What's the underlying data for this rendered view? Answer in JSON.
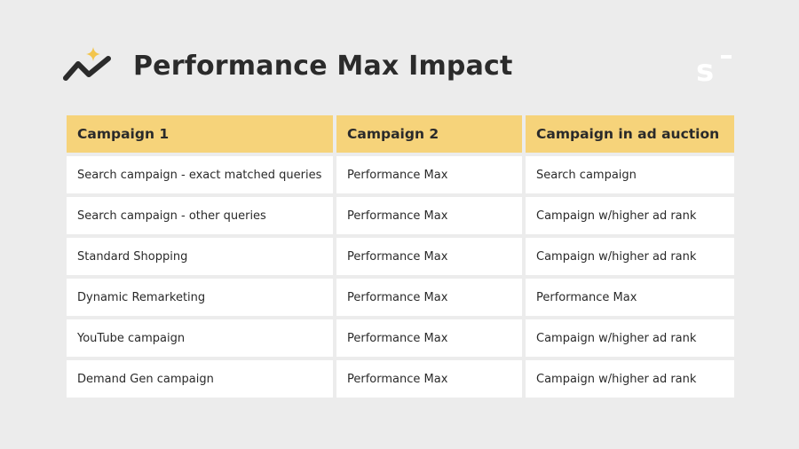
{
  "slide": {
    "title": "Performance Max Impact",
    "accent_color": "#f6d37a",
    "logo_icon": "trend-sparkle-icon",
    "brand_icon": "brand-s-logo-icon"
  },
  "table": {
    "headers": [
      "Campaign 1",
      "Campaign 2",
      "Campaign in ad auction"
    ],
    "rows": [
      [
        "Search campaign - exact matched queries",
        "Performance Max",
        "Search campaign"
      ],
      [
        "Search campaign - other queries",
        "Performance Max",
        "Campaign w/higher ad rank"
      ],
      [
        "Standard Shopping",
        "Performance Max",
        "Campaign w/higher ad rank"
      ],
      [
        "Dynamic Remarketing",
        "Performance Max",
        "Performance Max"
      ],
      [
        "YouTube campaign",
        "Performance Max",
        "Campaign w/higher ad rank"
      ],
      [
        "Demand Gen campaign",
        "Performance Max",
        "Campaign w/higher ad rank"
      ]
    ]
  }
}
